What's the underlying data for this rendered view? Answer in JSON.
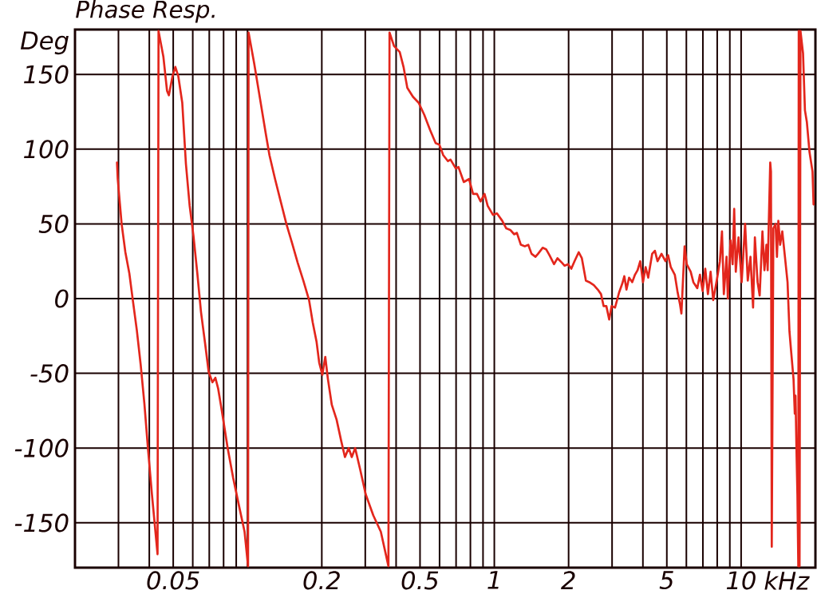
{
  "chart_data": {
    "type": "line",
    "title": "Phase Resp.",
    "xlabel": "kHz",
    "ylabel": "Deg",
    "log": "x",
    "grid": true,
    "xlim": [
      0.02,
      20
    ],
    "ylim": [
      -180,
      180
    ],
    "xticks": [
      {
        "value": 0.03,
        "label": null
      },
      {
        "value": 0.04,
        "label": null
      },
      0.05,
      {
        "value": 0.06,
        "label": null
      },
      {
        "value": 0.07,
        "label": null
      },
      {
        "value": 0.08,
        "label": null
      },
      {
        "value": 0.09,
        "label": null
      },
      {
        "value": 0.1,
        "label": null
      },
      0.2,
      {
        "value": 0.3,
        "label": null
      },
      {
        "value": 0.4,
        "label": null
      },
      0.5,
      {
        "value": 0.6,
        "label": null
      },
      {
        "value": 0.7,
        "label": null
      },
      {
        "value": 0.8,
        "label": null
      },
      {
        "value": 0.9,
        "label": null
      },
      1,
      2,
      {
        "value": 3,
        "label": null
      },
      {
        "value": 4,
        "label": null
      },
      5,
      {
        "value": 6,
        "label": null
      },
      {
        "value": 7,
        "label": null
      },
      {
        "value": 8,
        "label": null
      },
      {
        "value": 9,
        "label": null
      },
      10
    ],
    "yticks": [
      -150,
      -100,
      -50,
      0,
      50,
      100,
      150
    ],
    "series": [
      {
        "color": "#e3261c",
        "x": [
          0.0296,
          0.0298,
          0.0309,
          0.032,
          0.0332,
          0.0343,
          0.0356,
          0.0369,
          0.0382,
          0.0395,
          0.041,
          0.0432,
          0.0436,
          0.0456,
          0.0472,
          0.048,
          0.0497,
          0.051,
          0.0524,
          0.0544,
          0.0563,
          0.0583,
          0.0604,
          0.0626,
          0.0648,
          0.0672,
          0.0696,
          0.0721,
          0.0741,
          0.076,
          0.0787,
          0.0831,
          0.0875,
          0.0922,
          0.0973,
          0.1005,
          0.101,
          0.1065,
          0.1123,
          0.1184,
          0.1227,
          0.1293,
          0.1363,
          0.1437,
          0.1516,
          0.1597,
          0.1684,
          0.1776,
          0.1838,
          0.1905,
          0.1953,
          0.201,
          0.2066,
          0.2118,
          0.2195,
          0.2296,
          0.2395,
          0.2482,
          0.257,
          0.2645,
          0.273,
          0.2858,
          0.3013,
          0.3233,
          0.3469,
          0.3724,
          0.3762,
          0.3923,
          0.4137,
          0.4287,
          0.4441,
          0.4682,
          0.4937,
          0.5201,
          0.5487,
          0.5785,
          0.5989,
          0.6207,
          0.6484,
          0.6646,
          0.6985,
          0.7158,
          0.7523,
          0.79,
          0.8201,
          0.8511,
          0.8794,
          0.9128,
          0.9401,
          0.9874,
          1.025,
          1.077,
          1.118,
          1.16,
          1.204,
          1.234,
          1.281,
          1.329,
          1.373,
          1.415,
          1.468,
          1.504,
          1.57,
          1.621,
          1.673,
          1.746,
          1.803,
          1.88,
          1.927,
          1.991,
          2.051,
          2.113,
          2.197,
          2.263,
          2.35,
          2.426,
          2.53,
          2.627,
          2.706,
          2.773,
          2.844,
          2.921,
          2.987,
          3.085,
          3.202,
          3.299,
          3.364,
          3.431,
          3.516,
          3.622,
          3.715,
          3.807,
          3.902,
          4.003,
          4.102,
          4.203,
          4.362,
          4.473,
          4.585,
          4.758,
          4.937,
          5.061,
          5.19,
          5.386,
          5.52,
          5.657,
          5.729,
          5.902,
          6.021,
          6.248,
          6.405,
          6.644,
          6.81,
          6.984,
          7.157,
          7.337,
          7.524,
          7.71,
          8.003,
          8.203,
          8.365,
          8.511,
          8.73,
          8.834,
          9.06,
          9.236,
          9.374,
          9.515,
          9.759,
          10.05,
          10.38,
          10.64,
          10.91,
          11.18,
          11.37,
          11.66,
          11.89,
          12.2,
          12.43,
          12.66,
          12.81,
          13.12,
          13.21,
          13.31,
          13.51,
          13.79,
          13.97,
          14.15,
          14.39,
          14.68,
          15.05,
          15.42,
          15.7,
          15.92,
          16.31,
          16.5,
          16.61,
          16.78,
          16.91,
          17.05,
          17.12,
          17.25,
          17.4,
          17.82,
          18.14,
          18.47,
          18.93,
          19.47,
          19.66
        ],
        "values": [
          91,
          80,
          50,
          31,
          17,
          -1,
          -21,
          -44,
          -70,
          -100,
          -131,
          -171,
          179,
          162,
          139,
          136,
          149,
          155,
          149,
          131,
          90,
          62,
          42,
          17,
          -9,
          -29,
          -49,
          -56,
          -53,
          -60,
          -75,
          -100,
          -120,
          -138,
          -156,
          -179,
          178,
          157,
          134,
          111,
          96,
          80,
          65,
          50,
          37,
          24,
          12,
          -1,
          -16,
          -29,
          -43,
          -51,
          -39,
          -54,
          -71,
          -81,
          -95,
          -106,
          -100,
          -106,
          -100,
          -114,
          -131,
          -145,
          -156,
          -179,
          178,
          169,
          165,
          155,
          141,
          135,
          131,
          123,
          113,
          104,
          103,
          96,
          92,
          93,
          87,
          88,
          78,
          80,
          70,
          70,
          65,
          70,
          62,
          56,
          57,
          52,
          47,
          46,
          43,
          44,
          36,
          35,
          36,
          30,
          28,
          30,
          34,
          33,
          29,
          23,
          27,
          24,
          22,
          23,
          20,
          25,
          31,
          27,
          12,
          11,
          9,
          6,
          3,
          -5,
          -5,
          -14,
          -5,
          -6,
          4,
          10,
          15,
          6,
          14,
          11,
          16,
          19,
          25,
          11,
          21,
          14,
          30,
          32,
          25,
          30,
          25,
          29,
          21,
          16,
          5,
          -4,
          -10,
          35,
          23,
          18,
          11,
          7,
          16,
          5,
          20,
          3,
          18,
          -1,
          14,
          25,
          45,
          3,
          28,
          0,
          39,
          23,
          60,
          18,
          41,
          11,
          50,
          12,
          28,
          -6,
          41,
          11,
          2,
          45,
          19,
          36,
          19,
          91,
          85,
          -166,
          47,
          50,
          28,
          52,
          36,
          45,
          28,
          11,
          -22,
          -34,
          -54,
          -77,
          -65,
          -105,
          -131,
          -179,
          179,
          -179,
          179,
          164,
          126,
          118,
          98,
          85,
          63
        ]
      }
    ]
  }
}
